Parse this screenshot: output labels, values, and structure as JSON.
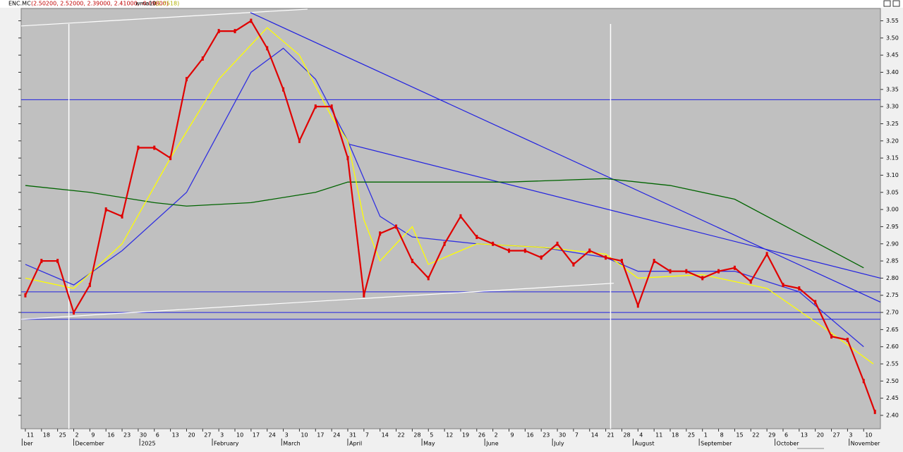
{
  "chart_data": {
    "type": "line",
    "title": "ENC.MC",
    "subtitle": "(2.50200, 2.52000, 2.39000, 2.41000, -0.09800)",
    "legend_value": "(2.5518)",
    "x": [
      0,
      1,
      2,
      3,
      4,
      5,
      6,
      7,
      8,
      9,
      10,
      11,
      12,
      13,
      14,
      15,
      16,
      17,
      18,
      19,
      20,
      21,
      22,
      23,
      24,
      25,
      26,
      27,
      28,
      29,
      30,
      31,
      32,
      33,
      34,
      35,
      36,
      37,
      38,
      39,
      40,
      41,
      42,
      43,
      44,
      45,
      46,
      47,
      48,
      49,
      50,
      51,
      52,
      52.7
    ],
    "values": [
      2.75,
      2.85,
      2.85,
      2.7,
      2.78,
      3.0,
      2.98,
      3.18,
      3.18,
      3.15,
      3.38,
      3.44,
      3.52,
      3.52,
      3.55,
      3.47,
      3.35,
      3.2,
      3.3,
      3.3,
      3.15,
      2.75,
      2.93,
      2.95,
      2.85,
      2.8,
      2.9,
      2.98,
      2.92,
      2.9,
      2.88,
      2.88,
      2.86,
      2.9,
      2.84,
      2.88,
      2.86,
      2.85,
      2.72,
      2.85,
      2.82,
      2.82,
      2.8,
      2.82,
      2.83,
      2.79,
      2.87,
      2.78,
      2.77,
      2.73,
      2.63,
      2.62,
      2.5,
      2.41
    ],
    "color": "#e00000",
    "series": [
      {
        "name": "wma10",
        "color": "#ffff00",
        "x": [
          0,
          3,
          6,
          9,
          12,
          15,
          17,
          19,
          20,
          21,
          22,
          24,
          25,
          28,
          32,
          36,
          38,
          42,
          46,
          50,
          52.6
        ],
        "values": [
          2.8,
          2.77,
          2.9,
          3.15,
          3.38,
          3.53,
          3.45,
          3.27,
          3.2,
          2.97,
          2.85,
          2.95,
          2.84,
          2.9,
          2.89,
          2.87,
          2.8,
          2.81,
          2.77,
          2.64,
          2.55
        ]
      },
      {
        "color": "#006400",
        "x": [
          0,
          4,
          8,
          10,
          14,
          18,
          20,
          24,
          30,
          36,
          40,
          44,
          48,
          52
        ],
        "values": [
          3.07,
          3.05,
          3.02,
          3.01,
          3.02,
          3.05,
          3.08,
          3.08,
          3.08,
          3.09,
          3.07,
          3.03,
          2.93,
          2.83
        ]
      },
      {
        "color": "#3030e0",
        "x": [
          0,
          3,
          6,
          10,
          14,
          16,
          18,
          20,
          22,
          24,
          28,
          32,
          36,
          38,
          44,
          48,
          52
        ],
        "values": [
          2.84,
          2.78,
          2.88,
          3.05,
          3.4,
          3.47,
          3.38,
          3.2,
          2.98,
          2.92,
          2.9,
          2.89,
          2.86,
          2.82,
          2.82,
          2.76,
          2.6
        ]
      }
    ],
    "hlines": [
      3.32,
      2.76,
      2.7,
      2.68
    ],
    "hline_color": "#2020e0",
    "trendlines": [
      {
        "color": "#ffffff",
        "x": [
          -0.26,
          17.5
        ],
        "values": [
          3.535,
          3.584
        ]
      },
      {
        "color": "#ffffff",
        "x": [
          -0.26,
          36.5
        ],
        "values": [
          2.68,
          2.785
        ]
      },
      {
        "color": "#2020e0",
        "x": [
          13.96,
          53.04
        ],
        "values": [
          3.574,
          2.73
        ]
      },
      {
        "color": "#2020e0",
        "x": [
          20.1,
          53.04
        ],
        "values": [
          3.19,
          2.8
        ]
      }
    ],
    "vlines": [
      2.7,
      36.3
    ],
    "vline_color": "#ffffff",
    "xlim": [
      -0.26,
      53.04
    ],
    "ylim": [
      2.361,
      3.586
    ],
    "yticks": [
      {
        "value": 2.4,
        "label": "2.40"
      },
      {
        "value": 2.45,
        "label": "2.45"
      },
      {
        "value": 2.5,
        "label": "2.50"
      },
      {
        "value": 2.55,
        "label": "2.55"
      },
      {
        "value": 2.6,
        "label": "2.60"
      },
      {
        "value": 2.65,
        "label": "2.65"
      },
      {
        "value": 2.7,
        "label": "2.70"
      },
      {
        "value": 2.75,
        "label": "2.75"
      },
      {
        "value": 2.8,
        "label": "2.80"
      },
      {
        "value": 2.85,
        "label": "2.85"
      },
      {
        "value": 2.9,
        "label": "2.90"
      },
      {
        "value": 2.95,
        "label": "2.95"
      },
      {
        "value": 3.0,
        "label": "3.00"
      },
      {
        "value": 3.05,
        "label": "3.05"
      },
      {
        "value": 3.1,
        "label": "3.10"
      },
      {
        "value": 3.15,
        "label": "3.15"
      },
      {
        "value": 3.2,
        "label": "3.20"
      },
      {
        "value": 3.25,
        "label": "3.25"
      },
      {
        "value": 3.3,
        "label": "3.30"
      },
      {
        "value": 3.35,
        "label": "3.35"
      },
      {
        "value": 3.4,
        "label": "3.40"
      },
      {
        "value": 3.45,
        "label": "3.45"
      },
      {
        "value": 3.5,
        "label": "3.50"
      },
      {
        "value": 3.55,
        "label": "3.55"
      }
    ],
    "xticks": [
      {
        "value": 0,
        "label": "11"
      },
      {
        "value": 1,
        "label": "18"
      },
      {
        "value": 2,
        "label": "25"
      },
      {
        "value": 3,
        "label": "2"
      },
      {
        "value": 4,
        "label": "9"
      },
      {
        "value": 5,
        "label": "16"
      },
      {
        "value": 6,
        "label": "23"
      },
      {
        "value": 7,
        "label": "30"
      },
      {
        "value": 8,
        "label": "6"
      },
      {
        "value": 9,
        "label": "13"
      },
      {
        "value": 10,
        "label": "20"
      },
      {
        "value": 11,
        "label": "27"
      },
      {
        "value": 12,
        "label": "3"
      },
      {
        "value": 13,
        "label": "10"
      },
      {
        "value": 14,
        "label": "17"
      },
      {
        "value": 15,
        "label": "24"
      },
      {
        "value": 16,
        "label": "3"
      },
      {
        "value": 17,
        "label": "10"
      },
      {
        "value": 18,
        "label": "17"
      },
      {
        "value": 19,
        "label": "24"
      },
      {
        "value": 20,
        "label": "31"
      },
      {
        "value": 21,
        "label": "7"
      },
      {
        "value": 22,
        "label": "14"
      },
      {
        "value": 23,
        "label": "22"
      },
      {
        "value": 24,
        "label": "28"
      },
      {
        "value": 25,
        "label": "5"
      },
      {
        "value": 26,
        "label": "12"
      },
      {
        "value": 27,
        "label": "19"
      },
      {
        "value": 28,
        "label": "26"
      },
      {
        "value": 29,
        "label": "2"
      },
      {
        "value": 30,
        "label": "9"
      },
      {
        "value": 31,
        "label": "16"
      },
      {
        "value": 32,
        "label": "23"
      },
      {
        "value": 33,
        "label": "30"
      },
      {
        "value": 34,
        "label": "7"
      },
      {
        "value": 35,
        "label": "14"
      },
      {
        "value": 36,
        "label": "21"
      },
      {
        "value": 37,
        "label": "28"
      },
      {
        "value": 38,
        "label": "4"
      },
      {
        "value": 39,
        "label": "11"
      },
      {
        "value": 40,
        "label": "18"
      },
      {
        "value": 41,
        "label": "25"
      },
      {
        "value": 42,
        "label": "1"
      },
      {
        "value": 43,
        "label": "8"
      },
      {
        "value": 44,
        "label": "15"
      },
      {
        "value": 45,
        "label": "22"
      },
      {
        "value": 46,
        "label": "29"
      },
      {
        "value": 47,
        "label": "6"
      },
      {
        "value": 48,
        "label": "13"
      },
      {
        "value": 49,
        "label": "20"
      },
      {
        "value": 50,
        "label": "27"
      },
      {
        "value": 51,
        "label": "3"
      },
      {
        "value": 52,
        "label": "10"
      }
    ],
    "months": [
      {
        "value": -0.2,
        "label": "ber"
      },
      {
        "value": 3,
        "label": "December"
      },
      {
        "value": 7.1,
        "label": "2025"
      },
      {
        "value": 11.6,
        "label": "February"
      },
      {
        "value": 15.9,
        "label": "March"
      },
      {
        "value": 20.0,
        "label": "April"
      },
      {
        "value": 24.6,
        "label": "May"
      },
      {
        "value": 28.5,
        "label": "June"
      },
      {
        "value": 32.7,
        "label": "July"
      },
      {
        "value": 37.7,
        "label": "August"
      },
      {
        "value": 41.8,
        "label": "September"
      },
      {
        "value": 46.5,
        "label": "October"
      },
      {
        "value": 51.1,
        "label": "November"
      }
    ]
  }
}
